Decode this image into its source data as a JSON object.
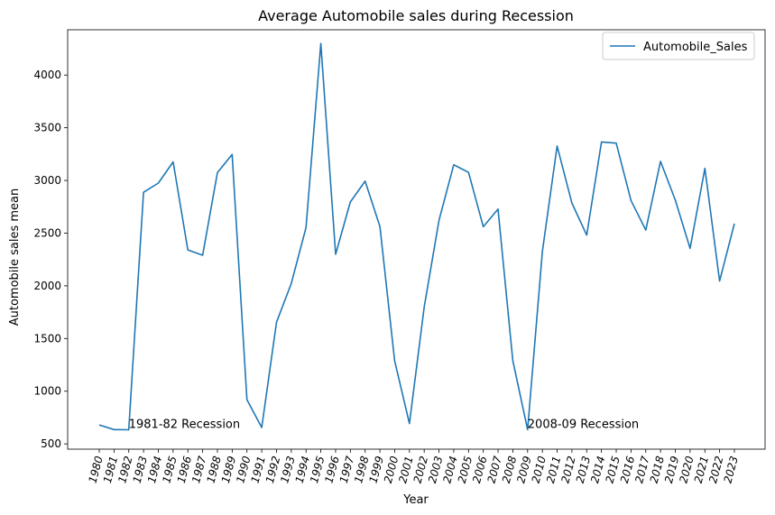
{
  "chart_data": {
    "type": "line",
    "title": "Average Automobile sales during Recession",
    "xlabel": "Year",
    "ylabel": "Automobile sales mean",
    "legend_position": "top-right",
    "grid": false,
    "x": [
      "1980",
      "1981",
      "1982",
      "1983",
      "1984",
      "1985",
      "1986",
      "1987",
      "1988",
      "1989",
      "1990",
      "1991",
      "1992",
      "1993",
      "1994",
      "1995",
      "1996",
      "1997",
      "1998",
      "1999",
      "2000",
      "2001",
      "2002",
      "2003",
      "2004",
      "2005",
      "2006",
      "2007",
      "2008",
      "2009",
      "2010",
      "2011",
      "2012",
      "2013",
      "2014",
      "2015",
      "2016",
      "2017",
      "2018",
      "2019",
      "2020",
      "2021",
      "2022",
      "2023"
    ],
    "ylim": [
      450,
      4430
    ],
    "yticks": [
      500,
      1000,
      1500,
      2000,
      2500,
      3000,
      3500,
      4000
    ],
    "series": [
      {
        "name": "Automobile_Sales",
        "color": "#1f77b4",
        "values": [
          680,
          636,
          634,
          2888,
          2975,
          3176,
          2341,
          2290,
          3074,
          3247,
          920,
          655,
          1655,
          2021,
          2554,
          4300,
          2300,
          2795,
          2993,
          2563,
          1290,
          693,
          1800,
          2622,
          3149,
          3077,
          2561,
          2728,
          1290,
          636,
          2329,
          3327,
          2785,
          2481,
          3365,
          3354,
          2810,
          2529,
          3181,
          2813,
          2355,
          3115,
          2045,
          2591
        ]
      }
    ],
    "annotations": [
      {
        "text": "1981-82 Recession",
        "x": "1982",
        "y": 650
      },
      {
        "text": "2008-09 Recession",
        "x": "2009",
        "y": 650
      }
    ]
  }
}
